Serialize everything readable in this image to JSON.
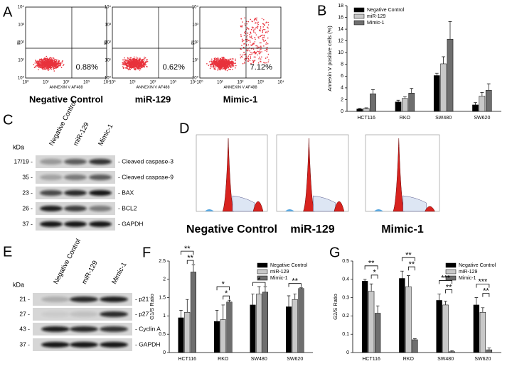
{
  "panel_letters": [
    "A",
    "B",
    "C",
    "D",
    "E",
    "F",
    "G"
  ],
  "flow": {
    "x_label": "ANNEXIN V AF488",
    "y_label": "PI",
    "ticks": [
      "10⁰",
      "10¹",
      "10²",
      "10³",
      "10⁴"
    ],
    "plots": [
      {
        "title": "Negative Control",
        "percent": "0.88%"
      },
      {
        "title": "miR-129",
        "percent": "0.62%"
      },
      {
        "title": "Mimic-1",
        "percent": "7.12%"
      }
    ]
  },
  "blot_c": {
    "unit": "kDa",
    "lanes": [
      "Negative Control",
      "miR-129",
      "Mimic-1"
    ],
    "rows": [
      {
        "size": "17/19 -",
        "protein": "- Cleaved caspase-3"
      },
      {
        "size": "35 -",
        "protein": "- Cleaved caspase-9"
      },
      {
        "size": "23 -",
        "protein": "- BAX"
      },
      {
        "size": "26 -",
        "protein": "- BCL2"
      },
      {
        "size": "37 -",
        "protein": "- GAPDH"
      }
    ]
  },
  "cell_cycle": {
    "titles": [
      "Negative Control",
      "miR-129",
      "Mimic-1"
    ]
  },
  "blot_e": {
    "unit": "kDa",
    "lanes": [
      "Negative Control",
      "miR-129",
      "Mimic-1"
    ],
    "rows": [
      {
        "size": "21 -",
        "protein": "- p21"
      },
      {
        "size": "27 -",
        "protein": "- p27"
      },
      {
        "size": "43 -",
        "protein": "- Cyclin A"
      },
      {
        "size": "37 -",
        "protein": "- GAPDH"
      }
    ]
  },
  "chart_data": [
    {
      "type": "bar",
      "y_label": "Annexin V positive cells (%)",
      "categories": [
        "HCT116",
        "RKO",
        "SW480",
        "SW620"
      ],
      "ylim": [
        0,
        18
      ],
      "yticks": [
        0,
        2,
        4,
        6,
        8,
        10,
        12,
        14,
        16,
        18
      ],
      "legend": "upper left",
      "series": [
        {
          "name": "Negative Control",
          "color": "#000000",
          "values": [
            0.4,
            1.6,
            6.1,
            1.1
          ],
          "errors": [
            0.1,
            0.3,
            0.4,
            0.4
          ]
        },
        {
          "name": "miR-129",
          "color": "#c8c8c8",
          "values": [
            0.5,
            2.2,
            8.1,
            2.6
          ],
          "errors": [
            0.1,
            0.3,
            1.2,
            0.6
          ]
        },
        {
          "name": "Mimic-1",
          "color": "#6e6e6e",
          "values": [
            3.0,
            3.1,
            12.3,
            3.6
          ],
          "errors": [
            0.7,
            0.8,
            3.0,
            1.1
          ]
        }
      ],
      "annotations": []
    },
    {
      "type": "bar",
      "y_label": "G1/S Ratio",
      "categories": [
        "HCT116",
        "RKO",
        "SW480",
        "SW620"
      ],
      "ylim": [
        0,
        2.5
      ],
      "yticks": [
        0,
        0.5,
        1,
        1.5,
        2,
        2.5
      ],
      "legend": "upper right",
      "series": [
        {
          "name": "Negative Control",
          "color": "#000000",
          "values": [
            0.95,
            0.85,
            1.3,
            1.25
          ],
          "errors": [
            0.2,
            0.3,
            0.3,
            0.3
          ]
        },
        {
          "name": "miR-129",
          "color": "#c8c8c8",
          "values": [
            1.1,
            0.9,
            1.6,
            1.45
          ],
          "errors": [
            0.35,
            0.4,
            0.2,
            0.15
          ]
        },
        {
          "name": "Mimic-1",
          "color": "#6e6e6e",
          "values": [
            2.2,
            1.38,
            1.65,
            1.75
          ],
          "errors": [
            0.2,
            0.05,
            0.15,
            0.02
          ]
        }
      ],
      "annotations": [
        {
          "label": "**",
          "category": 0,
          "between": [
            0,
            2
          ]
        },
        {
          "label": "**",
          "category": 0,
          "between": [
            1,
            2
          ]
        },
        {
          "label": "*",
          "category": 1,
          "between": [
            0,
            2
          ]
        },
        {
          "label": "*",
          "category": 1,
          "between": [
            1,
            2
          ]
        },
        {
          "label": "*",
          "category": 2,
          "between": [
            0,
            2
          ]
        },
        {
          "label": "**",
          "category": 3,
          "between": [
            0,
            2
          ]
        }
      ]
    },
    {
      "type": "bar",
      "y_label": "G2/S Ratio",
      "categories": [
        "HCT116",
        "RKO",
        "SW480",
        "SW620"
      ],
      "ylim": [
        0,
        0.5
      ],
      "yticks": [
        0,
        0.1,
        0.2,
        0.3,
        0.4,
        0.5
      ],
      "legend": "upper right",
      "series": [
        {
          "name": "Negative Control",
          "color": "#000000",
          "values": [
            0.39,
            0.405,
            0.285,
            0.26
          ],
          "errors": [
            0.01,
            0.04,
            0.035,
            0.04
          ]
        },
        {
          "name": "miR-129",
          "color": "#c8c8c8",
          "values": [
            0.335,
            0.36,
            0.26,
            0.22
          ],
          "errors": [
            0.04,
            0.06,
            0.02,
            0.025
          ]
        },
        {
          "name": "Mimic-1",
          "color": "#6e6e6e",
          "values": [
            0.215,
            0.07,
            0.005,
            0.015
          ],
          "errors": [
            0.04,
            0.005,
            0.005,
            0.01
          ]
        }
      ],
      "annotations": [
        {
          "label": "**",
          "category": 0,
          "between": [
            0,
            2
          ]
        },
        {
          "label": "*",
          "category": 0,
          "between": [
            1,
            2
          ]
        },
        {
          "label": "**",
          "category": 1,
          "between": [
            0,
            2
          ]
        },
        {
          "label": "**",
          "category": 1,
          "between": [
            1,
            2
          ]
        },
        {
          "label": "***",
          "category": 2,
          "between": [
            0,
            2
          ]
        },
        {
          "label": "**",
          "category": 2,
          "between": [
            1,
            2
          ]
        },
        {
          "label": "***",
          "category": 3,
          "between": [
            0,
            2
          ]
        },
        {
          "label": "**",
          "category": 3,
          "between": [
            1,
            2
          ]
        }
      ]
    }
  ]
}
